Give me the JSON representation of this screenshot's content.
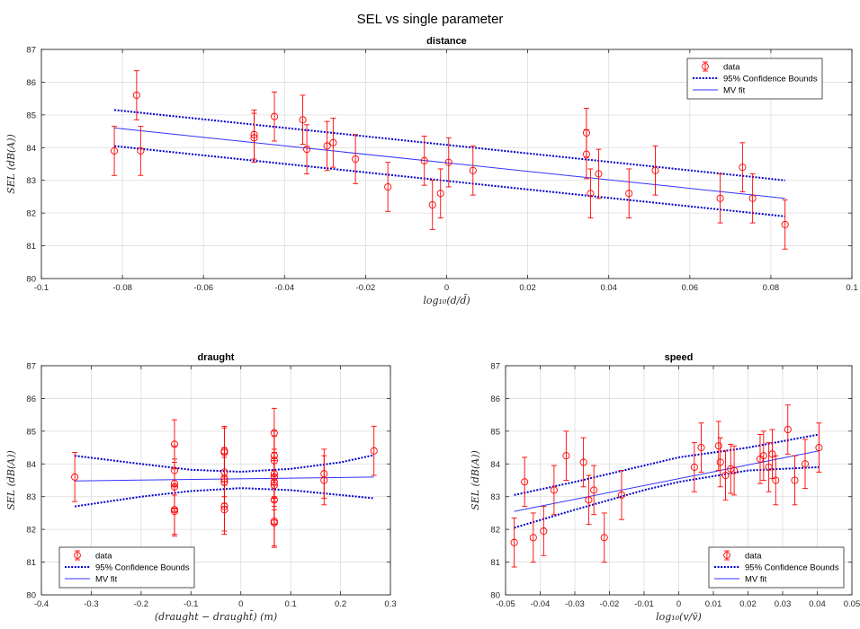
{
  "figure": {
    "title": "SEL vs single parameter"
  },
  "legend_labels": {
    "data": "data",
    "bounds": "95% Confidence Bounds",
    "fit": "MV fit"
  },
  "colors": {
    "data": "#ff0000",
    "bounds": "#0000cc",
    "fit": "#3333ff",
    "grid": "#dcdcdc",
    "axis": "#262626"
  },
  "chart_data": [
    {
      "id": "distance",
      "type": "scatter",
      "title": "distance",
      "xlabel": "log₁₀(d/d̄)",
      "ylabel": "SEL (dB(A))",
      "xlim": [
        -0.1,
        0.1
      ],
      "ylim": [
        80,
        87
      ],
      "xticks": [
        -0.1,
        -0.08,
        -0.06,
        -0.04,
        -0.02,
        0,
        0.02,
        0.04,
        0.06,
        0.08,
        0.1
      ],
      "xtick_labels": [
        "-0.1",
        "-0.08",
        "-0.06",
        "-0.04",
        "-0.02",
        "0",
        "0.02",
        "0.04",
        "0.06",
        "0.08",
        "0.1"
      ],
      "yticks": [
        80,
        81,
        82,
        83,
        84,
        85,
        86,
        87
      ],
      "grid": true,
      "legend_position": "top-right",
      "error_bar": 0.75,
      "points": [
        {
          "x": -0.082,
          "y": 83.9
        },
        {
          "x": -0.0765,
          "y": 85.6
        },
        {
          "x": -0.0755,
          "y": 83.9
        },
        {
          "x": -0.0475,
          "y": 84.4
        },
        {
          "x": -0.0475,
          "y": 84.3
        },
        {
          "x": -0.0425,
          "y": 84.95
        },
        {
          "x": -0.0355,
          "y": 84.85
        },
        {
          "x": -0.0345,
          "y": 83.95
        },
        {
          "x": -0.0295,
          "y": 84.05
        },
        {
          "x": -0.028,
          "y": 84.15
        },
        {
          "x": -0.0225,
          "y": 83.65
        },
        {
          "x": -0.0145,
          "y": 82.8
        },
        {
          "x": -0.0055,
          "y": 83.6
        },
        {
          "x": -0.0035,
          "y": 82.25
        },
        {
          "x": -0.0015,
          "y": 82.6
        },
        {
          "x": 0.0005,
          "y": 83.55
        },
        {
          "x": 0.0065,
          "y": 83.3
        },
        {
          "x": 0.0345,
          "y": 84.45
        },
        {
          "x": 0.0345,
          "y": 83.8
        },
        {
          "x": 0.0355,
          "y": 82.6
        },
        {
          "x": 0.0375,
          "y": 83.2
        },
        {
          "x": 0.045,
          "y": 82.6
        },
        {
          "x": 0.0515,
          "y": 83.3
        },
        {
          "x": 0.0675,
          "y": 82.45
        },
        {
          "x": 0.073,
          "y": 83.4
        },
        {
          "x": 0.0755,
          "y": 82.45
        },
        {
          "x": 0.0835,
          "y": 81.65
        }
      ],
      "fit": {
        "x": [
          -0.082,
          0.0835
        ],
        "y": [
          84.6,
          82.45
        ]
      },
      "bounds_upper": {
        "x": [
          -0.082,
          0.0835
        ],
        "y": [
          85.15,
          83.0
        ]
      },
      "bounds_lower": {
        "x": [
          -0.082,
          0.0835
        ],
        "y": [
          84.05,
          81.9
        ]
      }
    },
    {
      "id": "draught",
      "type": "scatter",
      "title": "draught",
      "xlabel": "(draught − draught̄) (m)",
      "ylabel": "SEL (dB(A))",
      "xlim": [
        -0.4,
        0.3
      ],
      "ylim": [
        80,
        87
      ],
      "xticks": [
        -0.4,
        -0.3,
        -0.2,
        -0.1,
        0,
        0.1,
        0.2,
        0.3
      ],
      "xtick_labels": [
        "-0.4",
        "-0.3",
        "-0.2",
        "-0.1",
        "0",
        "0.1",
        "0.2",
        "0.3"
      ],
      "yticks": [
        80,
        81,
        82,
        83,
        84,
        85,
        86,
        87
      ],
      "grid": true,
      "legend_position": "bottom-left",
      "error_bar": 0.75,
      "points": [
        {
          "x": -0.333,
          "y": 83.6
        },
        {
          "x": -0.133,
          "y": 84.6
        },
        {
          "x": -0.133,
          "y": 83.8
        },
        {
          "x": -0.133,
          "y": 83.4
        },
        {
          "x": -0.133,
          "y": 83.3
        },
        {
          "x": -0.133,
          "y": 82.6
        },
        {
          "x": -0.133,
          "y": 82.55
        },
        {
          "x": -0.033,
          "y": 84.4
        },
        {
          "x": -0.033,
          "y": 84.35
        },
        {
          "x": -0.033,
          "y": 83.75
        },
        {
          "x": -0.033,
          "y": 83.55
        },
        {
          "x": -0.033,
          "y": 83.45
        },
        {
          "x": -0.033,
          "y": 82.7
        },
        {
          "x": -0.033,
          "y": 82.6
        },
        {
          "x": 0.067,
          "y": 84.95
        },
        {
          "x": 0.067,
          "y": 84.25
        },
        {
          "x": 0.067,
          "y": 84.1
        },
        {
          "x": 0.067,
          "y": 83.7
        },
        {
          "x": 0.067,
          "y": 83.6
        },
        {
          "x": 0.067,
          "y": 83.45
        },
        {
          "x": 0.067,
          "y": 83.35
        },
        {
          "x": 0.067,
          "y": 82.9
        },
        {
          "x": 0.067,
          "y": 82.25
        },
        {
          "x": 0.067,
          "y": 82.2
        },
        {
          "x": 0.167,
          "y": 83.7
        },
        {
          "x": 0.167,
          "y": 83.5
        },
        {
          "x": 0.267,
          "y": 84.4
        }
      ],
      "fit": {
        "x": [
          -0.333,
          0.267
        ],
        "y": [
          83.48,
          83.6
        ]
      },
      "bounds_upper": {
        "x": [
          -0.333,
          -0.2,
          -0.1,
          0.0,
          0.1,
          0.2,
          0.267
        ],
        "y": [
          84.25,
          84.0,
          83.82,
          83.76,
          83.85,
          84.05,
          84.27
        ]
      },
      "bounds_lower": {
        "x": [
          -0.333,
          -0.2,
          -0.1,
          0.0,
          0.1,
          0.2,
          0.267
        ],
        "y": [
          82.7,
          83.0,
          83.17,
          83.26,
          83.2,
          83.05,
          82.95
        ]
      }
    },
    {
      "id": "speed",
      "type": "scatter",
      "title": "speed",
      "xlabel": "log₁₀(v/v̄)",
      "ylabel": "SEL (dB(A))",
      "xlim": [
        -0.05,
        0.05
      ],
      "ylim": [
        80,
        87
      ],
      "xticks": [
        -0.05,
        -0.04,
        -0.03,
        -0.02,
        -0.01,
        0,
        0.01,
        0.02,
        0.03,
        0.04,
        0.05
      ],
      "xtick_labels": [
        "-0.05",
        "-0.04",
        "-0.03",
        "-0.02",
        "-0.01",
        "0",
        "0.01",
        "0.02",
        "0.03",
        "0.04",
        "0.05"
      ],
      "yticks": [
        80,
        81,
        82,
        83,
        84,
        85,
        86,
        87
      ],
      "grid": true,
      "legend_position": "bottom-right",
      "error_bar": 0.75,
      "points": [
        {
          "x": -0.0475,
          "y": 81.6
        },
        {
          "x": -0.0445,
          "y": 83.45
        },
        {
          "x": -0.042,
          "y": 81.75
        },
        {
          "x": -0.039,
          "y": 81.95
        },
        {
          "x": -0.036,
          "y": 83.2
        },
        {
          "x": -0.0325,
          "y": 84.25
        },
        {
          "x": -0.0275,
          "y": 84.05
        },
        {
          "x": -0.026,
          "y": 82.9
        },
        {
          "x": -0.0245,
          "y": 83.2
        },
        {
          "x": -0.0215,
          "y": 81.75
        },
        {
          "x": -0.0165,
          "y": 83.05
        },
        {
          "x": 0.0045,
          "y": 83.9
        },
        {
          "x": 0.0065,
          "y": 84.5
        },
        {
          "x": 0.0115,
          "y": 84.55
        },
        {
          "x": 0.012,
          "y": 84.05
        },
        {
          "x": 0.0135,
          "y": 83.65
        },
        {
          "x": 0.015,
          "y": 83.85
        },
        {
          "x": 0.016,
          "y": 83.8
        },
        {
          "x": 0.0235,
          "y": 84.15
        },
        {
          "x": 0.0245,
          "y": 84.25
        },
        {
          "x": 0.026,
          "y": 83.9
        },
        {
          "x": 0.027,
          "y": 84.3
        },
        {
          "x": 0.028,
          "y": 83.5
        },
        {
          "x": 0.0315,
          "y": 85.05
        },
        {
          "x": 0.0335,
          "y": 83.5
        },
        {
          "x": 0.0365,
          "y": 84.0
        },
        {
          "x": 0.0405,
          "y": 84.5
        }
      ],
      "fit": {
        "x": [
          -0.0475,
          0.0405
        ],
        "y": [
          82.55,
          84.4
        ]
      },
      "bounds_upper": {
        "x": [
          -0.0475,
          -0.03,
          -0.01,
          0.0,
          0.02,
          0.0405
        ],
        "y": [
          83.05,
          83.45,
          83.95,
          84.2,
          84.5,
          84.9
        ]
      },
      "bounds_lower": {
        "x": [
          -0.0475,
          -0.03,
          -0.01,
          0.0,
          0.02,
          0.0405
        ],
        "y": [
          82.05,
          82.6,
          83.2,
          83.45,
          83.8,
          83.9
        ]
      }
    }
  ]
}
